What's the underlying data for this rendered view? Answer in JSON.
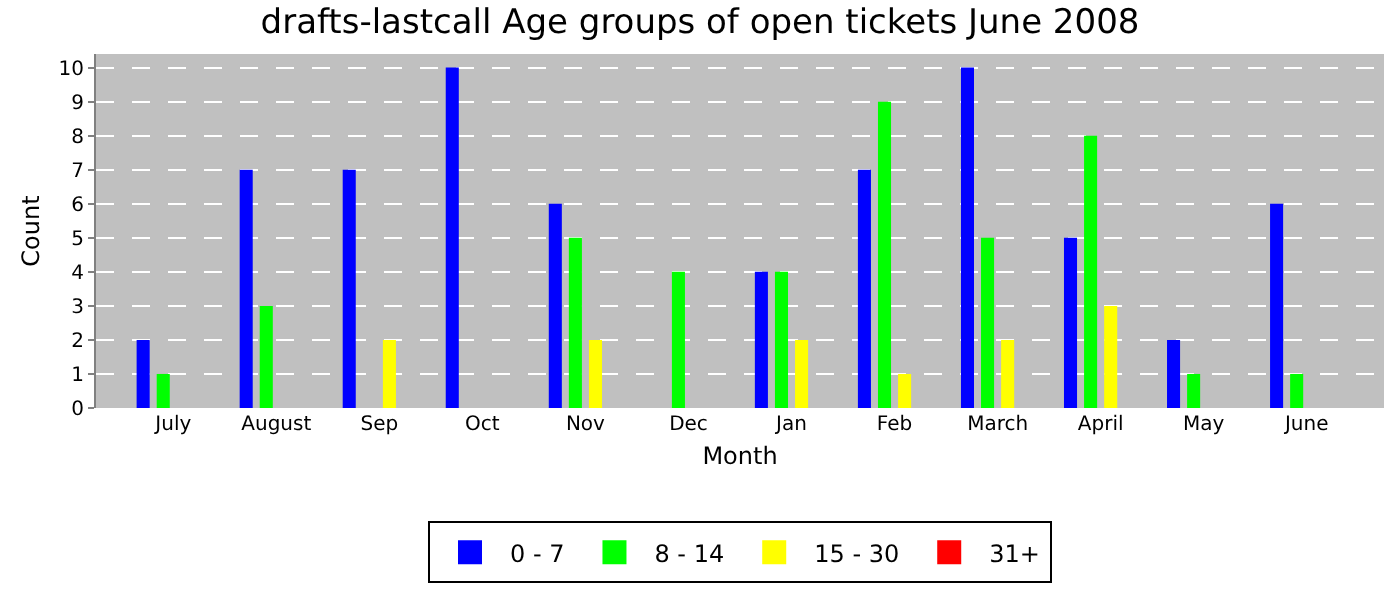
{
  "chart_data": {
    "type": "bar",
    "title": "drafts-lastcall Age groups of open tickets June 2008",
    "xlabel": "Month",
    "ylabel": "Count",
    "categories": [
      "July",
      "August",
      "Sep",
      "Oct",
      "Nov",
      "Dec",
      "Jan",
      "Feb",
      "March",
      "April",
      "May",
      "June"
    ],
    "series": [
      {
        "name": "0 - 7",
        "color": "#0000ff",
        "values": [
          2,
          7,
          7,
          10,
          6,
          0,
          4,
          7,
          10,
          5,
          2,
          6
        ]
      },
      {
        "name": "8 - 14",
        "color": "#00ff00",
        "values": [
          1,
          3,
          0,
          0,
          5,
          4,
          4,
          9,
          5,
          8,
          1,
          1
        ]
      },
      {
        "name": "15 - 30",
        "color": "#ffff00",
        "values": [
          0,
          0,
          2,
          0,
          2,
          0,
          2,
          1,
          2,
          3,
          0,
          0
        ]
      },
      {
        "name": "31+",
        "color": "#ff0000",
        "values": [
          0,
          0,
          0,
          0,
          0,
          0,
          0,
          0,
          0,
          0,
          0,
          0
        ]
      }
    ],
    "ylim": [
      0,
      10.4
    ],
    "yticks": [
      0,
      1,
      2,
      3,
      4,
      5,
      6,
      7,
      8,
      9,
      10
    ],
    "grid": "y",
    "legend": "bottom"
  }
}
